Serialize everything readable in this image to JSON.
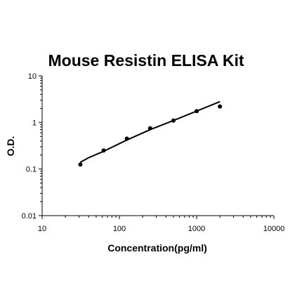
{
  "chart_data": {
    "type": "scatter",
    "title": "Mouse Resistin ELISA Kit",
    "xlabel": "Concentration(pg/ml)",
    "ylabel": "O.D.",
    "xscale": "log",
    "yscale": "log",
    "xlim": [
      10,
      10000
    ],
    "ylim": [
      0.01,
      10
    ],
    "xticks": [
      "10",
      "100",
      "1000",
      "10000"
    ],
    "yticks": [
      "0.01",
      "0.1",
      "1",
      "10"
    ],
    "grid": false,
    "legend": "none",
    "series": [
      {
        "points": [
          {
            "x": 31.25,
            "y": 0.125
          },
          {
            "x": 62.5,
            "y": 0.25
          },
          {
            "x": 125,
            "y": 0.45
          },
          {
            "x": 250,
            "y": 0.75
          },
          {
            "x": 500,
            "y": 1.1
          },
          {
            "x": 1000,
            "y": 1.75
          },
          {
            "x": 2000,
            "y": 2.2
          }
        ]
      }
    ],
    "fit_curve": [
      {
        "x": 31.25,
        "y": 0.14
      },
      {
        "x": 40,
        "y": 0.175
      },
      {
        "x": 62.5,
        "y": 0.24
      },
      {
        "x": 125,
        "y": 0.42
      },
      {
        "x": 250,
        "y": 0.7
      },
      {
        "x": 500,
        "y": 1.1
      },
      {
        "x": 1000,
        "y": 1.75
      },
      {
        "x": 2000,
        "y": 2.8
      }
    ],
    "colors": {
      "marker": "#000000",
      "line": "#000000",
      "axis": "#000000"
    }
  }
}
